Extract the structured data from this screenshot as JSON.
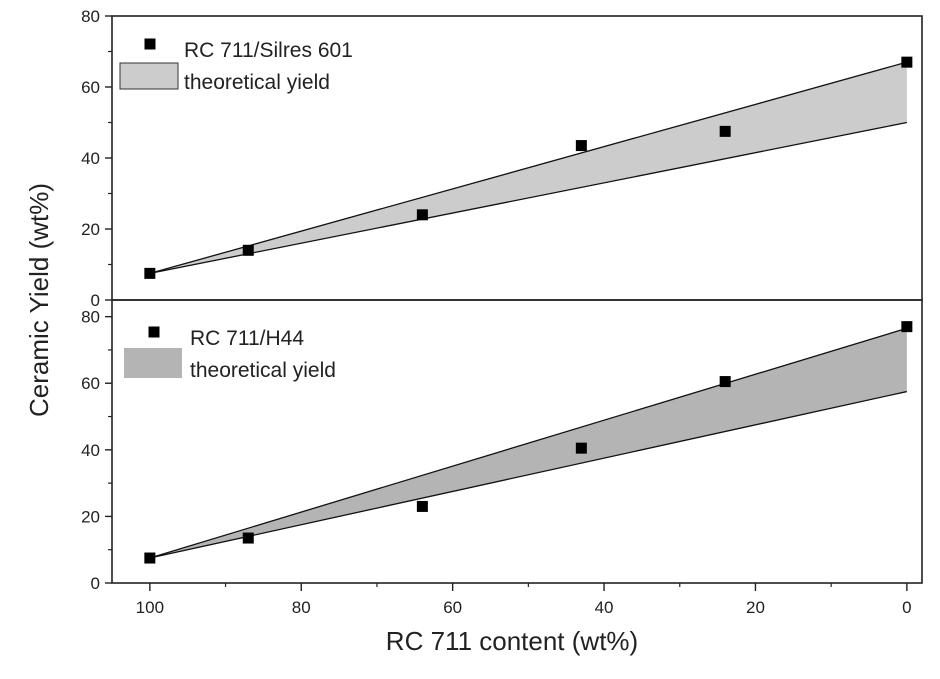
{
  "chart_data": [
    {
      "type": "scatter",
      "panel": "top",
      "xlabel": "RC 711 content (wt%)",
      "ylabel": "Ceramic Yield (wt%)",
      "xlim": [
        105,
        -2
      ],
      "ylim": [
        0,
        80
      ],
      "x_reversed": true,
      "x_ticks": [
        100,
        80,
        60,
        40,
        20,
        0
      ],
      "y_ticks": [
        0,
        20,
        40,
        60,
        80
      ],
      "legend": {
        "position": "top-left"
      },
      "series": [
        {
          "name": "RC 711/Silres 601",
          "kind": "points",
          "marker": "square",
          "color": "#000000",
          "x": [
            100,
            87,
            64,
            43,
            24,
            0
          ],
          "y": [
            7.5,
            14,
            24,
            43.5,
            47.5,
            67
          ]
        },
        {
          "name": "theoretical yield",
          "kind": "band",
          "color": "#cccccc",
          "x": [
            100,
            0
          ],
          "upper": [
            7.5,
            67
          ],
          "lower": [
            7.5,
            50
          ]
        }
      ]
    },
    {
      "type": "scatter",
      "panel": "bottom",
      "xlabel": "RC 711 content (wt%)",
      "ylabel": "Ceramic Yield (wt%)",
      "xlim": [
        105,
        -2
      ],
      "ylim": [
        0,
        85
      ],
      "x_reversed": true,
      "x_ticks": [
        100,
        80,
        60,
        40,
        20,
        0
      ],
      "y_ticks": [
        0,
        20,
        40,
        60,
        80
      ],
      "legend": {
        "position": "top-left"
      },
      "series": [
        {
          "name": "RC 711/H44",
          "kind": "points",
          "marker": "square",
          "color": "#000000",
          "x": [
            100,
            87,
            64,
            43,
            24,
            0
          ],
          "y": [
            7.5,
            13.5,
            23,
            40.5,
            60.5,
            77
          ]
        },
        {
          "name": "theoretical yield",
          "kind": "band",
          "color": "#b4b4b4",
          "x": [
            100,
            0
          ],
          "upper": [
            7.5,
            76.5
          ],
          "lower": [
            7.5,
            57.5
          ]
        }
      ]
    }
  ]
}
